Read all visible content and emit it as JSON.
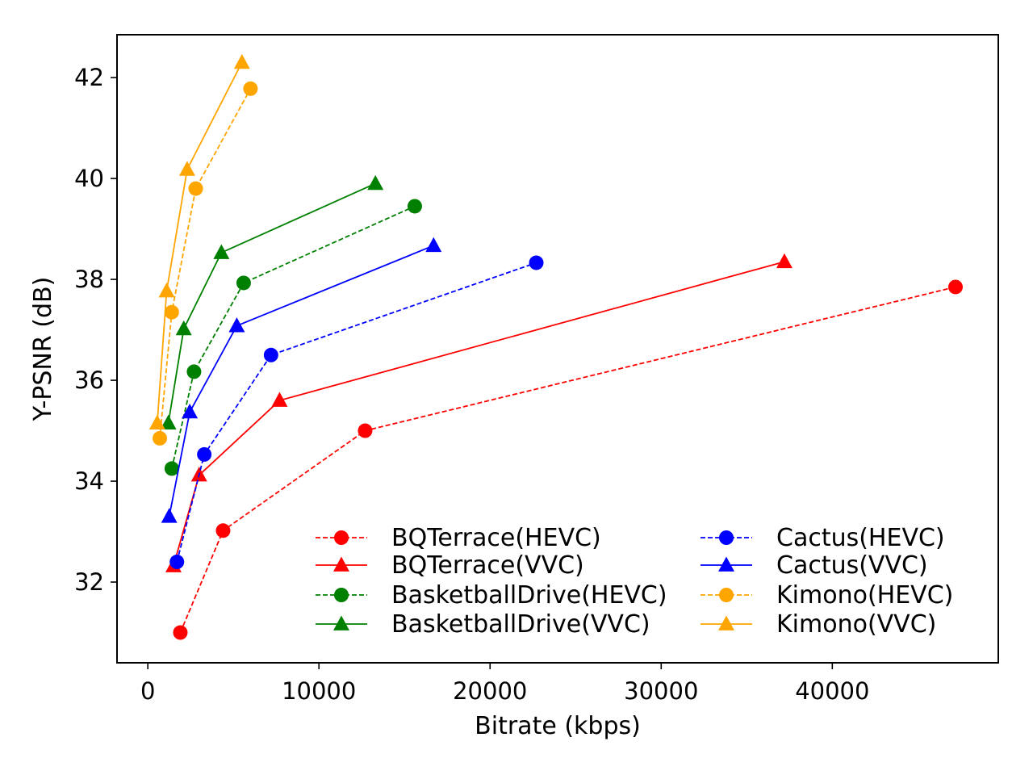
{
  "chart_data": {
    "type": "line",
    "xlabel": "Bitrate (kbps)",
    "ylabel": "Y-PSNR (dB)",
    "xlim": [
      -1800,
      49700
    ],
    "ylim": [
      30.4,
      42.85
    ],
    "xticks": [
      0,
      10000,
      20000,
      30000,
      40000
    ],
    "xtick_labels": [
      "0",
      "10000",
      "20000",
      "30000",
      "40000"
    ],
    "yticks": [
      32,
      34,
      36,
      38,
      40,
      42
    ],
    "ytick_labels": [
      "32",
      "34",
      "36",
      "38",
      "40",
      "42"
    ],
    "grid": false,
    "legend_position": "bottom-right",
    "legend_columns": 2,
    "series": [
      {
        "name": "BQTerrace(HEVC)",
        "color": "#ff0000",
        "line": "dashed",
        "marker": "circle",
        "x": [
          1900,
          4400,
          12700,
          47200
        ],
        "y": [
          31.0,
          33.02,
          35.0,
          37.85
        ]
      },
      {
        "name": "BQTerrace(VVC)",
        "color": "#ff0000",
        "line": "solid",
        "marker": "triangle",
        "x": [
          1500,
          3000,
          7700,
          37200
        ],
        "y": [
          32.32,
          34.12,
          35.6,
          38.35
        ]
      },
      {
        "name": "BasketballDrive(HEVC)",
        "color": "#008000",
        "line": "dashed",
        "marker": "circle",
        "x": [
          1400,
          2700,
          5600,
          15600
        ],
        "y": [
          34.25,
          36.17,
          37.93,
          39.45
        ]
      },
      {
        "name": "BasketballDrive(VVC)",
        "color": "#008000",
        "line": "solid",
        "marker": "triangle",
        "x": [
          1200,
          2100,
          4300,
          13300
        ],
        "y": [
          35.15,
          37.02,
          38.53,
          39.9
        ]
      },
      {
        "name": "Cactus(HEVC)",
        "color": "#0000ff",
        "line": "dashed",
        "marker": "circle",
        "x": [
          1700,
          3300,
          7200,
          22700
        ],
        "y": [
          32.4,
          34.53,
          36.5,
          38.33
        ]
      },
      {
        "name": "Cactus(VVC)",
        "color": "#0000ff",
        "line": "solid",
        "marker": "triangle",
        "x": [
          1250,
          2450,
          5200,
          16700
        ],
        "y": [
          33.3,
          35.37,
          37.08,
          38.67
        ]
      },
      {
        "name": "Kimono(HEVC)",
        "color": "#ffa500",
        "line": "dashed",
        "marker": "circle",
        "x": [
          700,
          1400,
          2800,
          6000
        ],
        "y": [
          34.85,
          37.35,
          39.8,
          41.78
        ]
      },
      {
        "name": "Kimono(VVC)",
        "color": "#ffa500",
        "line": "solid",
        "marker": "triangle",
        "x": [
          550,
          1100,
          2300,
          5500
        ],
        "y": [
          35.15,
          37.77,
          40.18,
          42.3
        ]
      }
    ]
  }
}
